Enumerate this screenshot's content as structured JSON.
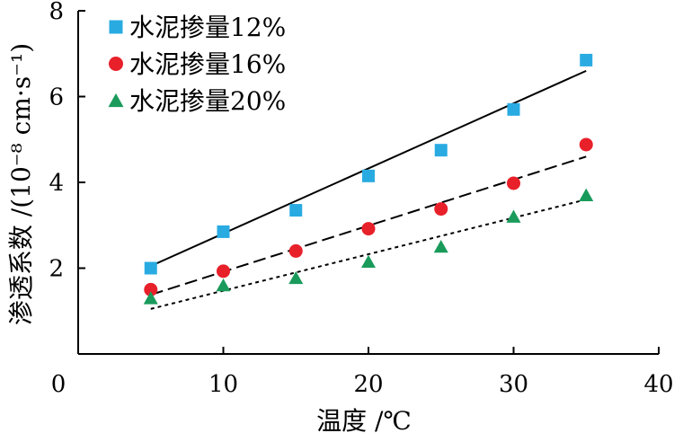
{
  "chart_data": {
    "type": "scatter",
    "xlabel": "温度 /℃",
    "ylabel": "渗透系数 /(10⁻⁸ cm·s⁻¹)",
    "xlim": [
      0,
      40
    ],
    "ylim": [
      0,
      8
    ],
    "xticks": [
      0,
      10,
      20,
      30,
      40
    ],
    "yticks": [
      2,
      4,
      6,
      8
    ],
    "grid": false,
    "legend_position": "top-left",
    "series": [
      {
        "name": "水泥掺量12%",
        "marker": "square",
        "color": "#29abe2",
        "line_style": "solid",
        "x": [
          5,
          10,
          15,
          20,
          25,
          30,
          35
        ],
        "y": [
          2.0,
          2.85,
          3.35,
          4.15,
          4.75,
          5.7,
          6.85
        ],
        "fit": [
          [
            5,
            2.05
          ],
          [
            35,
            6.6
          ]
        ]
      },
      {
        "name": "水泥掺量16%",
        "marker": "circle",
        "color": "#e8202a",
        "line_style": "dashed",
        "x": [
          5,
          10,
          15,
          20,
          25,
          30,
          35
        ],
        "y": [
          1.5,
          1.93,
          2.4,
          2.92,
          3.38,
          3.98,
          4.88
        ],
        "fit": [
          [
            5,
            1.38
          ],
          [
            35,
            4.6
          ]
        ]
      },
      {
        "name": "水泥掺量20%",
        "marker": "triangle",
        "color": "#1a9b5b",
        "line_style": "dotted",
        "x": [
          5,
          10,
          15,
          20,
          25,
          30,
          35
        ],
        "y": [
          1.3,
          1.6,
          1.77,
          2.15,
          2.5,
          3.2,
          3.7
        ],
        "fit": [
          [
            5,
            1.05
          ],
          [
            35,
            3.6
          ]
        ]
      }
    ]
  }
}
